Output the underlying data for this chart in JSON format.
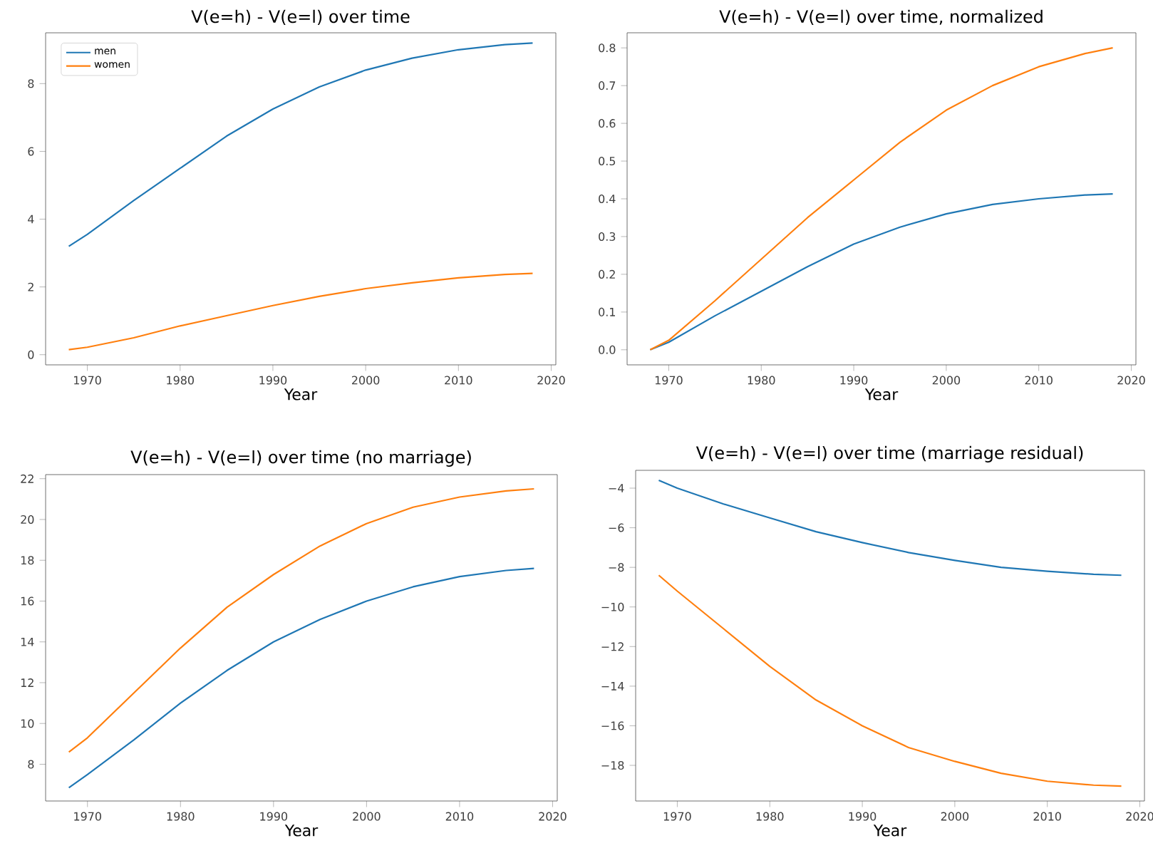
{
  "chart_data": [
    {
      "type": "line",
      "title": "V(e=h) - V(e=l) over time",
      "xlabel": "Year",
      "legend": "top left",
      "x": [
        1968,
        1970,
        1975,
        1980,
        1985,
        1990,
        1995,
        2000,
        2005,
        2010,
        2015,
        2018
      ],
      "xlim": [
        1965.5,
        2020.5
      ],
      "xticks": [
        1970,
        1980,
        1990,
        2000,
        2010,
        2020
      ],
      "ylim": [
        -0.3,
        9.5
      ],
      "yticks": [
        0,
        2,
        4,
        6,
        8
      ],
      "series": [
        {
          "name": "men",
          "color": "#1f77b4",
          "values": [
            3.2,
            3.55,
            4.55,
            5.5,
            6.45,
            7.25,
            7.9,
            8.4,
            8.75,
            9.0,
            9.15,
            9.2
          ]
        },
        {
          "name": "women",
          "color": "#ff7f0e",
          "values": [
            0.15,
            0.22,
            0.5,
            0.85,
            1.15,
            1.45,
            1.72,
            1.95,
            2.12,
            2.27,
            2.37,
            2.4
          ]
        }
      ]
    },
    {
      "type": "line",
      "title": "V(e=h) - V(e=l) over time, normalized",
      "xlabel": "Year",
      "x": [
        1968,
        1970,
        1975,
        1980,
        1985,
        1990,
        1995,
        2000,
        2005,
        2010,
        2015,
        2018
      ],
      "xlim": [
        1965.5,
        2020.5
      ],
      "xticks": [
        1970,
        1980,
        1990,
        2000,
        2010,
        2020
      ],
      "ylim": [
        -0.04,
        0.84
      ],
      "yticks": [
        {
          "value": 0,
          "label": "0.0"
        },
        0.1,
        0.2,
        0.3,
        0.4,
        0.5,
        0.6,
        0.7,
        0.8
      ],
      "series": [
        {
          "color": "#1f77b4",
          "values": [
            0,
            0.02,
            0.09,
            0.155,
            0.22,
            0.28,
            0.325,
            0.36,
            0.385,
            0.4,
            0.41,
            0.413
          ]
        },
        {
          "color": "#ff7f0e",
          "values": [
            0,
            0.025,
            0.13,
            0.24,
            0.35,
            0.45,
            0.55,
            0.635,
            0.7,
            0.75,
            0.785,
            0.8
          ]
        }
      ]
    },
    {
      "type": "line",
      "title": "V(e=h) - V(e=l) over time (no marriage)",
      "xlabel": "Year",
      "x": [
        1968,
        1970,
        1975,
        1980,
        1985,
        1990,
        1995,
        2000,
        2005,
        2010,
        2015,
        2018
      ],
      "xlim": [
        1965.5,
        2020.5
      ],
      "xticks": [
        1970,
        1980,
        1990,
        2000,
        2010,
        2020
      ],
      "ylim": [
        6.2,
        22.2
      ],
      "yticks": [
        8,
        10,
        12,
        14,
        16,
        18,
        20,
        22
      ],
      "series": [
        {
          "color": "#1f77b4",
          "values": [
            6.85,
            7.5,
            9.2,
            11.0,
            12.6,
            14.0,
            15.1,
            16.0,
            16.7,
            17.2,
            17.5,
            17.6
          ]
        },
        {
          "color": "#ff7f0e",
          "values": [
            8.6,
            9.3,
            11.5,
            13.7,
            15.7,
            17.3,
            18.7,
            19.8,
            20.6,
            21.1,
            21.4,
            21.5
          ]
        }
      ]
    },
    {
      "type": "line",
      "title": "V(e=h) - V(e=l) over time (marriage residual)",
      "xlabel": "Year",
      "x": [
        1968,
        1970,
        1975,
        1980,
        1985,
        1990,
        1995,
        2000,
        2005,
        2010,
        2015,
        2018
      ],
      "xlim": [
        1965.5,
        2020.5
      ],
      "xticks": [
        1970,
        1980,
        1990,
        2000,
        2010,
        2020
      ],
      "ylim": [
        -19.8,
        -3.1
      ],
      "yticks": [
        {
          "value": -4,
          "label": "−4"
        },
        {
          "value": -6,
          "label": "−6"
        },
        {
          "value": -8,
          "label": "−8"
        },
        {
          "value": -10,
          "label": "−10"
        },
        {
          "value": -12,
          "label": "−12"
        },
        {
          "value": -14,
          "label": "−14"
        },
        {
          "value": -16,
          "label": "−16"
        },
        {
          "value": -18,
          "label": "−18"
        }
      ],
      "series": [
        {
          "color": "#1f77b4",
          "values": [
            -3.6,
            -4.0,
            -4.8,
            -5.5,
            -6.2,
            -6.75,
            -7.25,
            -7.65,
            -8.0,
            -8.2,
            -8.35,
            -8.4
          ]
        },
        {
          "color": "#ff7f0e",
          "values": [
            -8.4,
            -9.2,
            -11.1,
            -13.0,
            -14.7,
            -16.0,
            -17.1,
            -17.8,
            -18.4,
            -18.8,
            -19.0,
            -19.05
          ]
        }
      ]
    }
  ]
}
